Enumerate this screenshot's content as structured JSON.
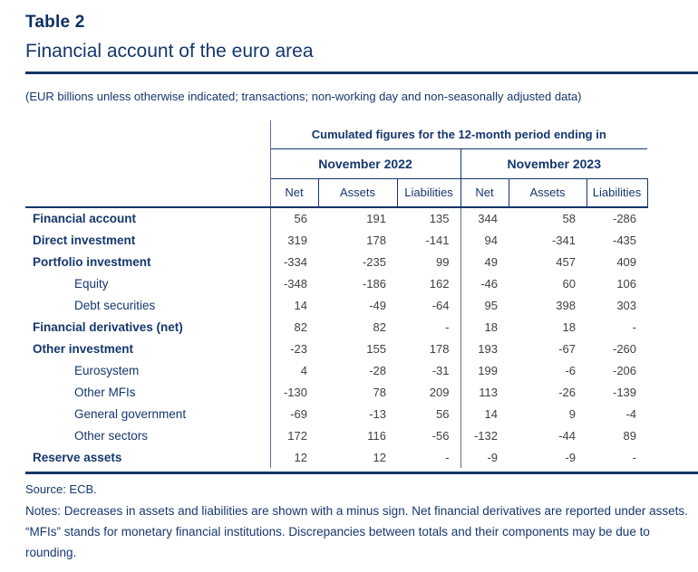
{
  "header": {
    "title": "Table 2",
    "subtitle": "Financial account of the euro area",
    "unit_note": "(EUR billions unless otherwise indicated; transactions; non-working day and non-seasonally adjusted data)"
  },
  "table": {
    "spanner": "Cumulated figures for the 12-month period ending in",
    "periods": [
      "November 2022",
      "November 2023"
    ],
    "column_headers": [
      "Net",
      "Assets",
      "Liabilities",
      "Net",
      "Assets",
      "Liabilities"
    ],
    "rows": [
      {
        "label": "Financial account",
        "bold": true,
        "indent": false,
        "values": [
          "56",
          "191",
          "135",
          "344",
          "58",
          "-286"
        ]
      },
      {
        "label": "Direct investment",
        "bold": true,
        "indent": false,
        "values": [
          "319",
          "178",
          "-141",
          "94",
          "-341",
          "-435"
        ]
      },
      {
        "label": "Portfolio investment",
        "bold": true,
        "indent": false,
        "values": [
          "-334",
          "-235",
          "99",
          "49",
          "457",
          "409"
        ]
      },
      {
        "label": "Equity",
        "bold": false,
        "indent": true,
        "values": [
          "-348",
          "-186",
          "162",
          "-46",
          "60",
          "106"
        ]
      },
      {
        "label": "Debt securities",
        "bold": false,
        "indent": true,
        "values": [
          "14",
          "-49",
          "-64",
          "95",
          "398",
          "303"
        ]
      },
      {
        "label": "Financial derivatives (net)",
        "bold": true,
        "indent": false,
        "values": [
          "82",
          "82",
          "-",
          "18",
          "18",
          "-"
        ]
      },
      {
        "label": "Other investment",
        "bold": true,
        "indent": false,
        "values": [
          "-23",
          "155",
          "178",
          "193",
          "-67",
          "-260"
        ]
      },
      {
        "label": "Eurosystem",
        "bold": false,
        "indent": true,
        "values": [
          "4",
          "-28",
          "-31",
          "199",
          "-6",
          "-206"
        ]
      },
      {
        "label": "Other MFIs",
        "bold": false,
        "indent": true,
        "values": [
          "-130",
          "78",
          "209",
          "113",
          "-26",
          "-139"
        ]
      },
      {
        "label": "General government",
        "bold": false,
        "indent": true,
        "values": [
          "-69",
          "-13",
          "56",
          "14",
          "9",
          "-4"
        ]
      },
      {
        "label": "Other sectors",
        "bold": false,
        "indent": true,
        "values": [
          "172",
          "116",
          "-56",
          "-132",
          "-44",
          "89"
        ]
      },
      {
        "label": "Reserve assets",
        "bold": true,
        "indent": false,
        "values": [
          "12",
          "12",
          "-",
          "-9",
          "-9",
          "-"
        ]
      }
    ]
  },
  "footer": {
    "source": "Source: ECB.",
    "notes": "Notes: Decreases in assets and liabilities are shown with a minus sign. Net financial derivatives are reported under assets. “MFIs” stands for monetary financial institutions. Discrepancies between totals and their components may be due to rounding."
  },
  "colors": {
    "navy_text": "#15376e",
    "rule": "#14356b",
    "number_text": "#404040"
  }
}
